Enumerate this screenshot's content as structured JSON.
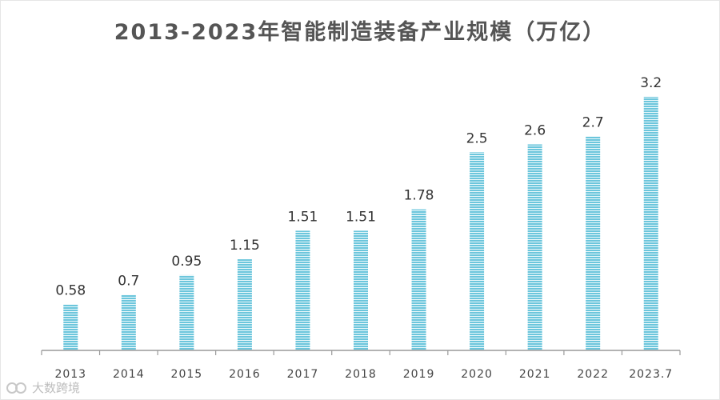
{
  "title": "2013-2023年智能制造装备产业规模（万亿）",
  "watermark": "大数跨境",
  "colors": {
    "bar": "#6cc6dc",
    "bar_stripe": "#ffffff",
    "axis": "#9a9a9a",
    "label": "#333333",
    "tick": "#444444"
  },
  "chart_data": {
    "type": "bar",
    "title": "2013-2023年智能制造装备产业规模（万亿）",
    "categories": [
      "2013",
      "2014",
      "2015",
      "2016",
      "2017",
      "2018",
      "2019",
      "2020",
      "2021",
      "2022",
      "2023.7"
    ],
    "values": [
      0.58,
      0.7,
      0.95,
      1.15,
      1.51,
      1.51,
      1.78,
      2.5,
      2.6,
      2.7,
      3.2
    ],
    "value_labels": [
      "0.58",
      "0.7",
      "0.95",
      "1.15",
      "1.51",
      "1.51",
      "1.78",
      "2.5",
      "2.6",
      "2.7",
      "3.2"
    ],
    "xlabel": "",
    "ylabel": "",
    "ylim": [
      0,
      3.2
    ],
    "grid": false,
    "legend": "none"
  }
}
